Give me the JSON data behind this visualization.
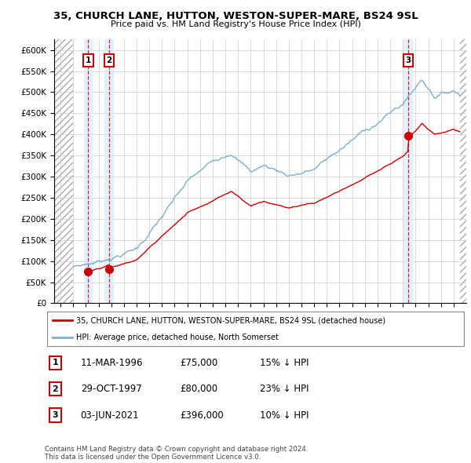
{
  "title_line1": "35, CHURCH LANE, HUTTON, WESTON-SUPER-MARE, BS24 9SL",
  "title_line2": "Price paid vs. HM Land Registry's House Price Index (HPI)",
  "xlim": [
    1993.5,
    2026.0
  ],
  "ylim": [
    0,
    625000
  ],
  "yticks": [
    0,
    50000,
    100000,
    150000,
    200000,
    250000,
    300000,
    350000,
    400000,
    450000,
    500000,
    550000,
    600000
  ],
  "ytick_labels": [
    "£0",
    "£50K",
    "£100K",
    "£150K",
    "£200K",
    "£250K",
    "£300K",
    "£350K",
    "£400K",
    "£450K",
    "£500K",
    "£550K",
    "£600K"
  ],
  "sale_dates": [
    1996.19,
    1997.83,
    2021.42
  ],
  "sale_prices": [
    75000,
    80000,
    396000
  ],
  "sale_labels": [
    "1",
    "2",
    "3"
  ],
  "hpi_color": "#7bafd4",
  "sale_color": "#cc0000",
  "dashed_color": "#cc0000",
  "highlight_bg_color": "#ddeeff",
  "legend_label_red": "35, CHURCH LANE, HUTTON, WESTON-SUPER-MARE, BS24 9SL (detached house)",
  "legend_label_blue": "HPI: Average price, detached house, North Somerset",
  "table_entries": [
    {
      "num": "1",
      "date": "11-MAR-1996",
      "price": "£75,000",
      "hpi": "15% ↓ HPI"
    },
    {
      "num": "2",
      "date": "29-OCT-1997",
      "price": "£80,000",
      "hpi": "23% ↓ HPI"
    },
    {
      "num": "3",
      "date": "03-JUN-2021",
      "price": "£396,000",
      "hpi": "10% ↓ HPI"
    }
  ],
  "footnote": "Contains HM Land Registry data © Crown copyright and database right 2024.\nThis data is licensed under the Open Government Licence v3.0.",
  "hpi_data_start": 1995.0,
  "hpi_data_end": 2025.5,
  "prop_data_start": 1996.19,
  "prop_data_end": 2025.5
}
